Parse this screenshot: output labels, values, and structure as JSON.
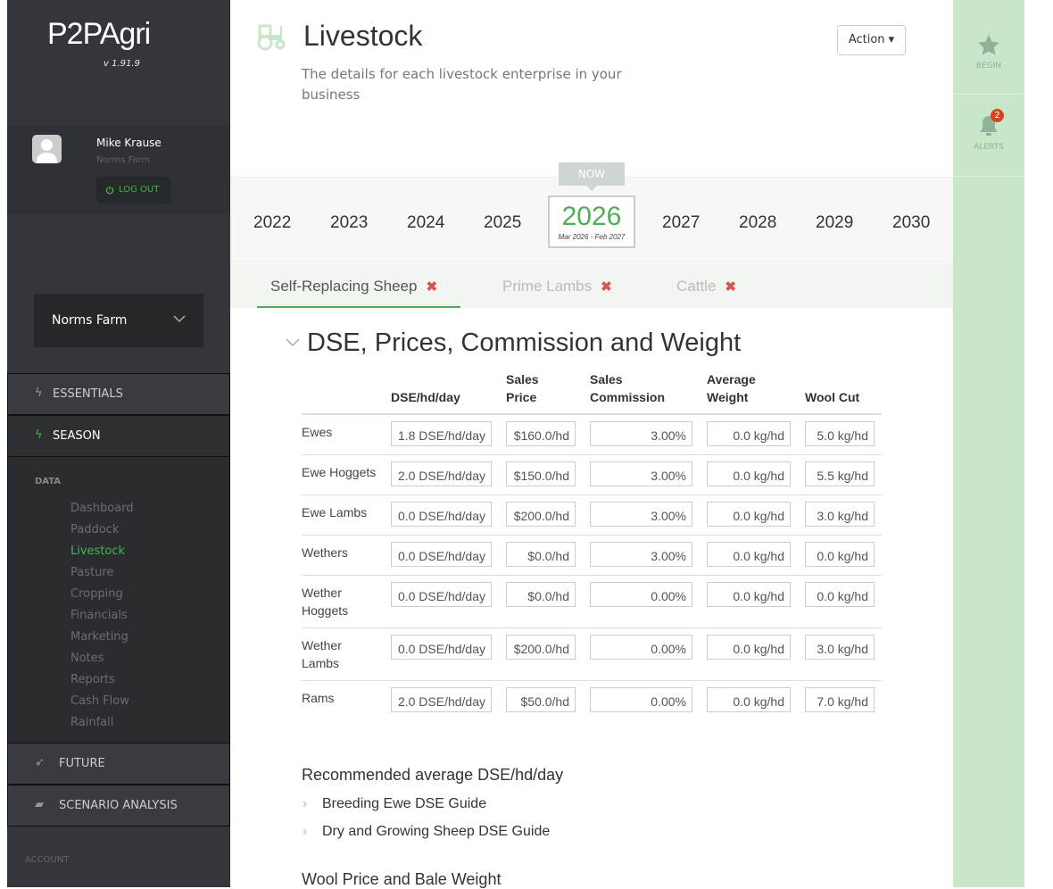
{
  "brand": {
    "logo": "P2PAgri",
    "version": "v 1.91.9"
  },
  "user": {
    "name": "Mike Krause",
    "farm": "Norms Farm",
    "logout": "LOG OUT"
  },
  "farm_select": "Norms Farm",
  "nav": {
    "essentials": "ESSENTIALS",
    "season": "SEASON",
    "data_heading": "DATA",
    "items": [
      "Dashboard",
      "Paddock",
      "Livestock",
      "Pasture",
      "Cropping",
      "Financials",
      "Marketing",
      "Notes",
      "Reports",
      "Cash Flow",
      "Rainfall"
    ],
    "active": "Livestock",
    "future": "FUTURE",
    "scenario": "SCENARIO ANALYSIS",
    "account": "ACCOUNT"
  },
  "page": {
    "title": "Livestock",
    "subtitle": "The details for each livestock enterprise in your business",
    "action": "Action ▾"
  },
  "years": {
    "list": [
      "2022",
      "2023",
      "2024",
      "2025",
      "2026",
      "2027",
      "2028",
      "2029",
      "2030"
    ],
    "current": "2026",
    "now_label": "NOW",
    "current_range": "Mar 2026 - Feb 2027"
  },
  "tabs": [
    "Self-Replacing Sheep",
    "Prime Lambs",
    "Cattle"
  ],
  "section": {
    "title": "DSE, Prices, Commission and Weight",
    "columns": [
      "",
      "DSE/hd/day",
      "Sales Price",
      "Sales Commission",
      "Average Weight",
      "Wool Cut"
    ],
    "rows": [
      [
        "Ewes",
        "1.8 DSE/hd/day",
        "$160.0/hd",
        "3.00%",
        "0.0 kg/hd",
        "5.0 kg/hd"
      ],
      [
        "Ewe Hoggets",
        "2.0 DSE/hd/day",
        "$150.0/hd",
        "3.00%",
        "0.0 kg/hd",
        "5.5 kg/hd"
      ],
      [
        "Ewe Lambs",
        "0.0 DSE/hd/day",
        "$200.0/hd",
        "3.00%",
        "0.0 kg/hd",
        "3.0 kg/hd"
      ],
      [
        "Wethers",
        "0.0 DSE/hd/day",
        "$0.0/hd",
        "3.00%",
        "0.0 kg/hd",
        "0.0 kg/hd"
      ],
      [
        "Wether Hoggets",
        "0.0 DSE/hd/day",
        "$0.0/hd",
        "0.00%",
        "0.0 kg/hd",
        "0.0 kg/hd"
      ],
      [
        "Wether Lambs",
        "0.0 DSE/hd/day",
        "$200.0/hd",
        "0.00%",
        "0.0 kg/hd",
        "3.0 kg/hd"
      ],
      [
        "Rams",
        "2.0 DSE/hd/day",
        "$50.0/hd",
        "0.00%",
        "0.0 kg/hd",
        "7.0 kg/hd"
      ]
    ]
  },
  "recommended": {
    "title": "Recommended average DSE/hd/day",
    "guides": [
      "Breeding Ewe DSE Guide",
      "Dry and Growing Sheep DSE Guide"
    ]
  },
  "wool_heading": "Wool Price and Bale Weight",
  "rail": {
    "begin": "BEGIN",
    "alerts": "ALERTS",
    "alert_count": "2"
  },
  "colors": {
    "accent": "#4caf50",
    "sidebar": "#33373b",
    "rail": "#c8e6c9",
    "remove": "#d9534f"
  }
}
